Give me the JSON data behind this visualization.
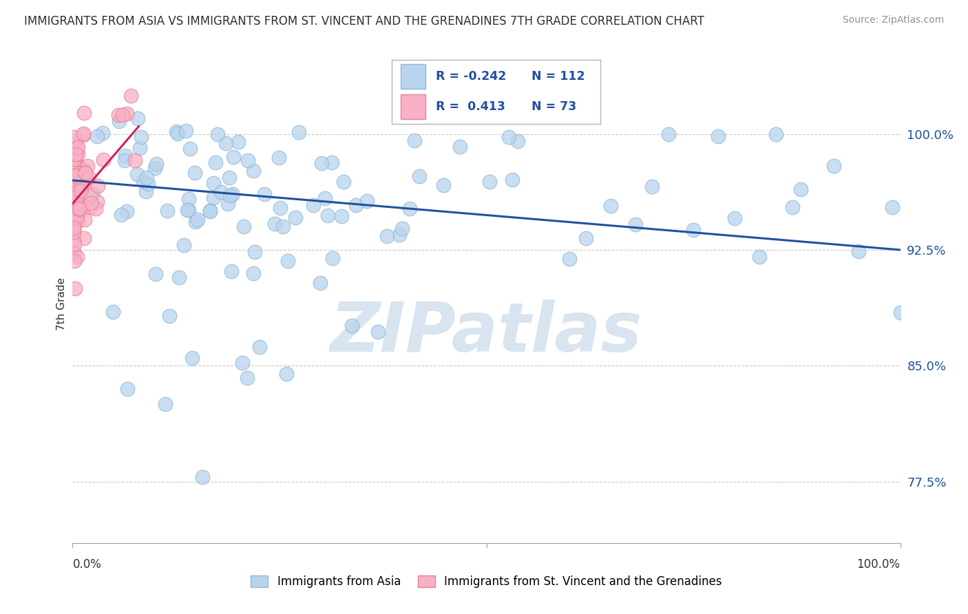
{
  "title": "IMMIGRANTS FROM ASIA VS IMMIGRANTS FROM ST. VINCENT AND THE GRENADINES 7TH GRADE CORRELATION CHART",
  "source": "Source: ZipAtlas.com",
  "ylabel": "7th Grade",
  "y_tick_labels": [
    "77.5%",
    "85.0%",
    "92.5%",
    "100.0%"
  ],
  "y_tick_values": [
    0.775,
    0.85,
    0.925,
    1.0
  ],
  "xlim": [
    0.0,
    1.0
  ],
  "ylim": [
    0.735,
    1.045
  ],
  "blue_color": "#b8d4ec",
  "blue_edge": "#90b8d8",
  "pink_color": "#f8b0c4",
  "pink_edge": "#e88098",
  "trend_blue": "#2050a0",
  "trend_pink": "#cc2255",
  "legend_blue_r": "-0.242",
  "legend_blue_n": "112",
  "legend_pink_r": "0.413",
  "legend_pink_n": "73",
  "blue_trend_y_start": 0.97,
  "blue_trend_y_end": 0.925,
  "pink_trend_y_start": 0.955,
  "pink_trend_y_end": 1.005,
  "grid_color": "#c8c8c8",
  "background": "#ffffff",
  "title_color": "#303030",
  "source_color": "#909090",
  "watermark_color": "#d8e4ef",
  "legend_box_color": "#b0b8c0"
}
